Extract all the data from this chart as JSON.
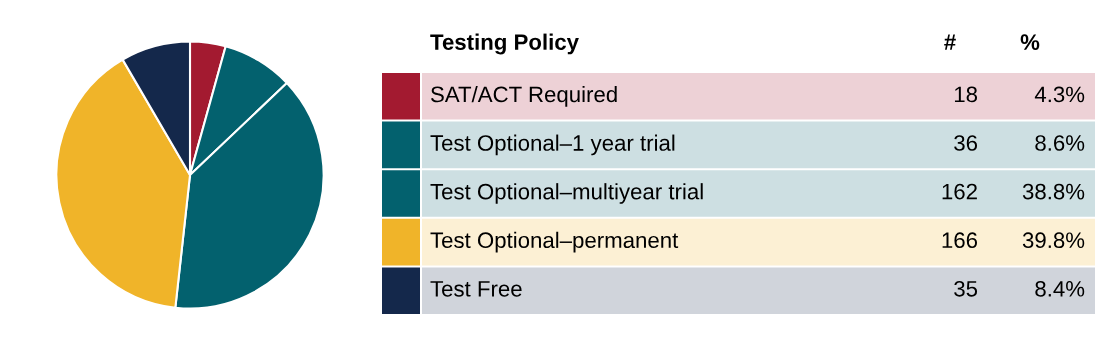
{
  "chart_data": {
    "type": "pie",
    "legend_title": "Testing Policy",
    "categories": [
      "SAT/ACT Required",
      "Test Optional–1 year trial",
      "Test Optional–multiyear trial",
      "Test Optional–permanent",
      "Test Free"
    ],
    "values": [
      4.3,
      8.6,
      38.8,
      39.8,
      8.4
    ],
    "colors": [
      "#a31a30",
      "#03616e",
      "#03616e",
      "#f0b429",
      "#14284b"
    ],
    "value_labels": [
      "4.3%",
      "8.6%",
      "38.8%",
      "39.8%",
      "8.4%"
    ],
    "annotations": [
      "#",
      "%",
      "18",
      "36",
      "162",
      "166",
      "35"
    ],
    "legend": "right"
  }
}
